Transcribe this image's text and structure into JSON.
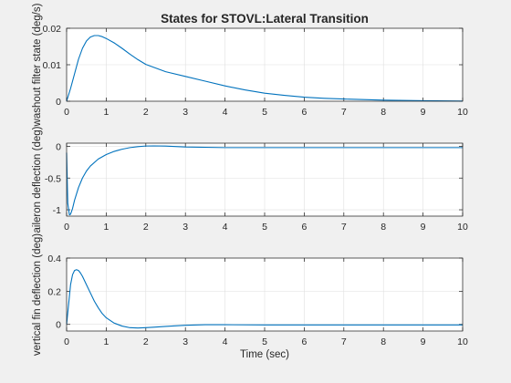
{
  "chart_data": [
    {
      "type": "line",
      "title": "States for STOVL:Lateral Transition",
      "xlabel": "",
      "ylabel": "washout filter state (deg/s)",
      "xlim": [
        0,
        10
      ],
      "ylim": [
        0,
        0.02
      ],
      "xticks": [
        0,
        1,
        2,
        3,
        4,
        5,
        6,
        7,
        8,
        9,
        10
      ],
      "xtick_labels": [
        "0",
        "1",
        "2",
        "3",
        "4",
        "5",
        "6",
        "7",
        "8",
        "9",
        "10"
      ],
      "yticks": [
        0,
        0.01,
        0.02
      ],
      "ytick_labels": [
        "0",
        "0.01",
        "0.02"
      ],
      "grid": true,
      "color": "#0072BD",
      "series": [
        {
          "x": [
            0,
            0.1,
            0.2,
            0.3,
            0.4,
            0.5,
            0.6,
            0.7,
            0.8,
            0.9,
            1.0,
            1.2,
            1.4,
            1.6,
            1.8,
            2.0,
            2.5,
            3.0,
            3.5,
            4.0,
            4.5,
            5.0,
            5.5,
            6.0,
            6.5,
            7.0,
            8.0,
            9.0,
            10.0
          ],
          "y": [
            0,
            0.0035,
            0.0075,
            0.0115,
            0.0145,
            0.0165,
            0.0176,
            0.018,
            0.018,
            0.0177,
            0.0172,
            0.016,
            0.0145,
            0.0129,
            0.0114,
            0.0101,
            0.0081,
            0.0068,
            0.0055,
            0.0042,
            0.0031,
            0.0022,
            0.0016,
            0.0011,
            0.0008,
            0.0006,
            0.0003,
            0.00015,
            5e-05
          ]
        }
      ]
    },
    {
      "type": "line",
      "title": "",
      "xlabel": "",
      "ylabel": "aileron deflection (deg)",
      "xlim": [
        0,
        10
      ],
      "ylim": [
        -1.1,
        0.05
      ],
      "xticks": [
        0,
        1,
        2,
        3,
        4,
        5,
        6,
        7,
        8,
        9,
        10
      ],
      "xtick_labels": [
        "0",
        "1",
        "2",
        "3",
        "4",
        "5",
        "6",
        "7",
        "8",
        "9",
        "10"
      ],
      "yticks": [
        -1,
        -0.5,
        0
      ],
      "ytick_labels": [
        "-1",
        "-0.5",
        "0"
      ],
      "grid": true,
      "color": "#0072BD",
      "series": [
        {
          "x": [
            0,
            0.03,
            0.07,
            0.1,
            0.15,
            0.2,
            0.3,
            0.4,
            0.5,
            0.6,
            0.8,
            1.0,
            1.2,
            1.4,
            1.6,
            1.8,
            2.0,
            2.2,
            2.5,
            3.0,
            4.0,
            5.0,
            6.0,
            8.0,
            10.0
          ],
          "y": [
            -0.1,
            -0.9,
            -1.08,
            -1.07,
            -0.98,
            -0.85,
            -0.65,
            -0.5,
            -0.39,
            -0.31,
            -0.2,
            -0.13,
            -0.08,
            -0.045,
            -0.02,
            -0.005,
            0.005,
            0.007,
            0.004,
            -0.01,
            -0.02,
            -0.02,
            -0.02,
            -0.02,
            -0.02
          ]
        }
      ]
    },
    {
      "type": "line",
      "title": "",
      "xlabel": "Time (sec)",
      "ylabel": "vertical fin deflection (deg)",
      "xlim": [
        0,
        10
      ],
      "ylim": [
        -0.04,
        0.4
      ],
      "xticks": [
        0,
        1,
        2,
        3,
        4,
        5,
        6,
        7,
        8,
        9,
        10
      ],
      "xtick_labels": [
        "0",
        "1",
        "2",
        "3",
        "4",
        "5",
        "6",
        "7",
        "8",
        "9",
        "10"
      ],
      "yticks": [
        0,
        0.2,
        0.4
      ],
      "ytick_labels": [
        "0",
        "0.2",
        "0.4"
      ],
      "grid": true,
      "color": "#0072BD",
      "series": [
        {
          "x": [
            0,
            0.05,
            0.1,
            0.15,
            0.2,
            0.25,
            0.3,
            0.35,
            0.4,
            0.5,
            0.6,
            0.7,
            0.8,
            0.9,
            1.0,
            1.2,
            1.4,
            1.6,
            1.8,
            2.0,
            2.2,
            2.5,
            3.0,
            3.5,
            4.0,
            5.0,
            6.0,
            8.0,
            10.0
          ],
          "y": [
            0.0,
            0.12,
            0.24,
            0.3,
            0.325,
            0.33,
            0.325,
            0.31,
            0.29,
            0.24,
            0.19,
            0.14,
            0.1,
            0.065,
            0.04,
            0.008,
            -0.01,
            -0.02,
            -0.022,
            -0.02,
            -0.017,
            -0.012,
            -0.005,
            -0.002,
            -0.002,
            -0.003,
            -0.003,
            -0.003,
            -0.003
          ]
        }
      ]
    }
  ]
}
